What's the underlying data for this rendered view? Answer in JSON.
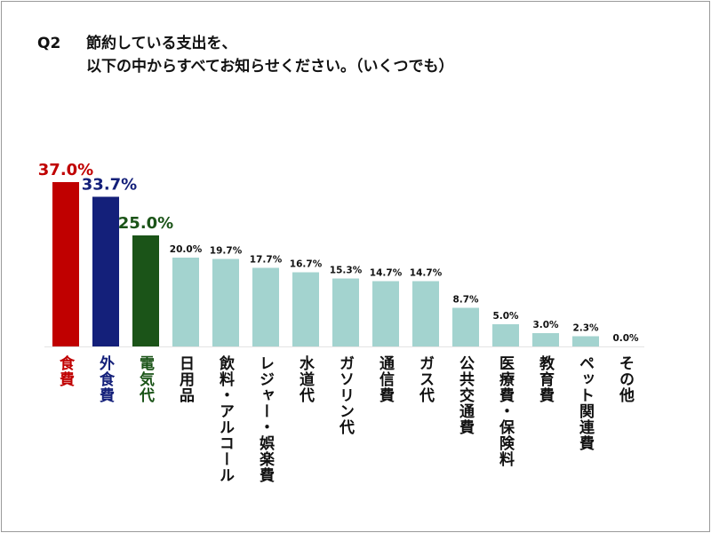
{
  "title": {
    "question": "Q2",
    "line1": "節約している支出を、",
    "line2": "以下の中からすべてお知らせください。（いくつでも）"
  },
  "chart_data": {
    "type": "bar",
    "title": "Q2 節約している支出を、以下の中からすべてお知らせください。（いくつでも）",
    "categories": [
      "食費",
      "外食費",
      "電気代",
      "日用品",
      "飲料・アルコール",
      "レジャー・娯楽費",
      "水道代",
      "ガソリン代",
      "通信費",
      "ガス代",
      "公共交通費",
      "医療費・保険料",
      "教育費",
      "ペット関連費",
      "その他"
    ],
    "values": [
      37.0,
      33.7,
      25.0,
      20.0,
      19.7,
      17.7,
      16.7,
      15.3,
      14.7,
      14.7,
      8.7,
      5.0,
      3.0,
      2.3,
      0.0
    ],
    "labels": [
      "37.0%",
      "33.7%",
      "25.0%",
      "20.0%",
      "19.7%",
      "17.7%",
      "16.7%",
      "15.3%",
      "14.7%",
      "14.7%",
      "8.7%",
      "5.0%",
      "3.0%",
      "2.3%",
      "0.0%"
    ],
    "unit": "%",
    "ylim": [
      0,
      40
    ],
    "grid": false,
    "legend": "none",
    "colors": [
      "#c00000",
      "#14207a",
      "#1b5418",
      "#a3d3cf",
      "#a3d3cf",
      "#a3d3cf",
      "#a3d3cf",
      "#a3d3cf",
      "#a3d3cf",
      "#a3d3cf",
      "#a3d3cf",
      "#a3d3cf",
      "#a3d3cf",
      "#a3d3cf",
      "#a3d3cf"
    ],
    "label_colors": [
      "#c00000",
      "#14207a",
      "#1b5418",
      "#111111",
      "#111111",
      "#111111",
      "#111111",
      "#111111",
      "#111111",
      "#111111",
      "#111111",
      "#111111",
      "#111111",
      "#111111",
      "#111111"
    ]
  }
}
